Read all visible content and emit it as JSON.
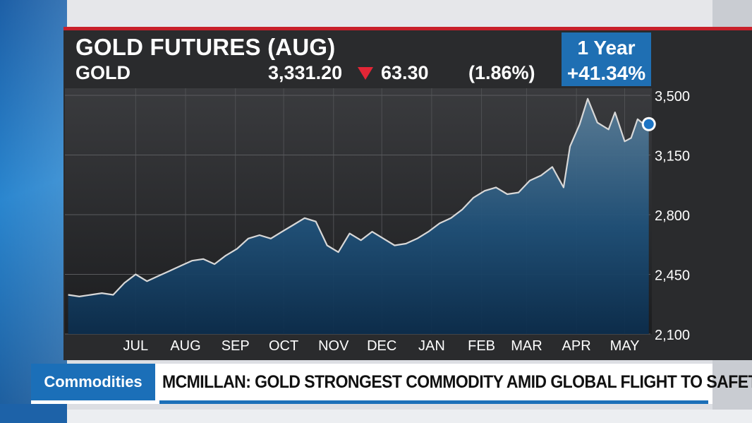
{
  "header": {
    "title": "GOLD FUTURES (AUG)",
    "ticker": "GOLD",
    "price": "3,331.20",
    "change": "63.30",
    "change_pct": "(1.86%)",
    "direction": "down",
    "period_label": "1 Year",
    "period_change": "+41.34%"
  },
  "colors": {
    "accent_red": "#c8202a",
    "down_red": "#e32636",
    "bloomberg_blue": "#1f6fb3",
    "line": "#d8d8d8"
  },
  "chart_data": {
    "type": "area",
    "x_ticks": [
      "JUL",
      "AUG",
      "SEP",
      "OCT",
      "NOV",
      "DEC",
      "JAN",
      "FEB",
      "MAR",
      "APR",
      "MAY"
    ],
    "y_ticks": [
      "3,500",
      "3,150",
      "2,800",
      "2,450",
      "2,100"
    ],
    "ylim": [
      2100,
      3500
    ],
    "grid": true,
    "series": [
      {
        "x": [
          "Jun 3",
          "Jun 10",
          "Jun 17",
          "Jun 24",
          "Jul 1",
          "Jul 8",
          "Jul 15",
          "Jul 22",
          "Jul 29",
          "Aug 5",
          "Aug 12",
          "Aug 19",
          "Aug 26",
          "Sep 2",
          "Sep 9",
          "Sep 16",
          "Sep 23",
          "Sep 30",
          "Oct 7",
          "Oct 14",
          "Oct 21",
          "Oct 28",
          "Nov 4",
          "Nov 11",
          "Nov 18",
          "Nov 25",
          "Dec 2",
          "Dec 9",
          "Dec 16",
          "Dec 23",
          "Dec 30",
          "Jan 6",
          "Jan 13",
          "Jan 20",
          "Jan 27",
          "Feb 3",
          "Feb 10",
          "Feb 17",
          "Feb 24",
          "Mar 3",
          "Mar 10",
          "Mar 17",
          "Mar 24",
          "Mar 31",
          "Apr 7",
          "Apr 11",
          "Apr 17",
          "Apr 22",
          "Apr 28",
          "May 5",
          "May 9",
          "May 15",
          "May 19",
          "May 23",
          "May 27",
          "May 30"
        ],
        "values": [
          2330,
          2320,
          2330,
          2340,
          2330,
          2400,
          2450,
          2410,
          2440,
          2470,
          2500,
          2530,
          2540,
          2510,
          2560,
          2600,
          2660,
          2680,
          2660,
          2700,
          2740,
          2780,
          2760,
          2620,
          2580,
          2690,
          2650,
          2700,
          2660,
          2620,
          2630,
          2660,
          2700,
          2750,
          2780,
          2830,
          2900,
          2940,
          2960,
          2920,
          2930,
          3000,
          3030,
          3080,
          2960,
          3200,
          3330,
          3480,
          3340,
          3300,
          3400,
          3230,
          3250,
          3360,
          3330,
          3331.2
        ]
      }
    ]
  },
  "ticker_strip": {
    "category": "Commodities",
    "headline": "MCMILLAN: GOLD STRONGEST COMMODITY AMID GLOBAL FLIGHT TO SAFETY"
  }
}
